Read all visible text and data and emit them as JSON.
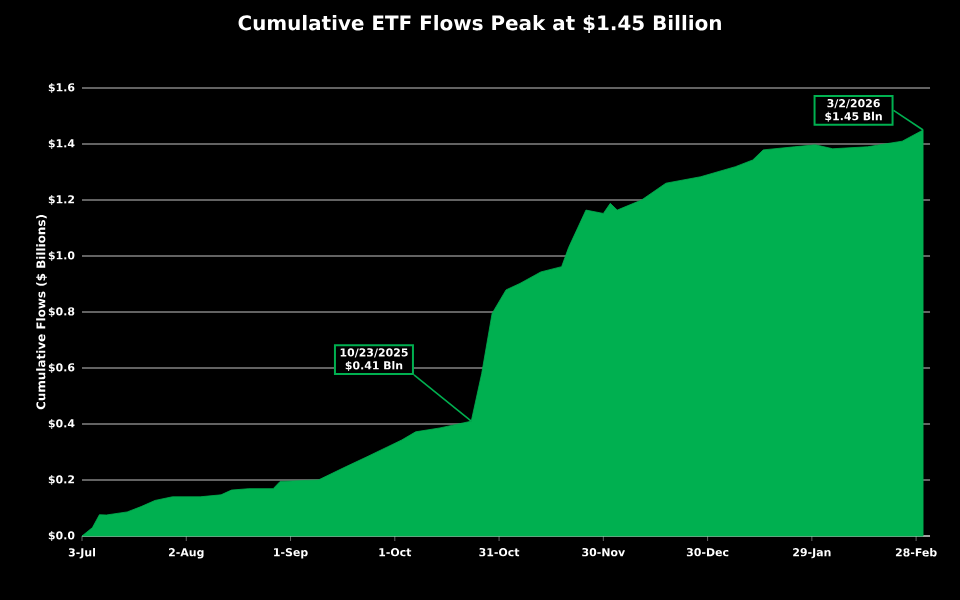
{
  "chart_data": {
    "type": "area",
    "title": "Cumulative ETF Flows Peak at $1.45 Billion",
    "ylabel": "Cumulative Flows ($ Billions)",
    "x": [
      "2025-07-03",
      "2025-07-06",
      "2025-07-08",
      "2025-07-10",
      "2025-07-16",
      "2025-07-20",
      "2025-07-24",
      "2025-07-29",
      "2025-08-06",
      "2025-08-12",
      "2025-08-15",
      "2025-08-20",
      "2025-08-27",
      "2025-08-29",
      "2025-09-09",
      "2025-09-13",
      "2025-09-17",
      "2025-09-23",
      "2025-09-29",
      "2025-10-03",
      "2025-10-07",
      "2025-10-14",
      "2025-10-20",
      "2025-10-23",
      "2025-10-26",
      "2025-10-29",
      "2025-11-02",
      "2025-11-06",
      "2025-11-12",
      "2025-11-18",
      "2025-11-20",
      "2025-11-25",
      "2025-11-30",
      "2025-12-02",
      "2025-12-04",
      "2025-12-11",
      "2025-12-18",
      "2025-12-28",
      "2026-01-07",
      "2026-01-12",
      "2026-01-15",
      "2026-01-24",
      "2026-01-30",
      "2026-02-04",
      "2026-02-14",
      "2026-02-24",
      "2026-03-02"
    ],
    "series": [
      {
        "color": "#00b050",
        "values": [
          0.0,
          0.03,
          0.076,
          0.075,
          0.086,
          0.105,
          0.127,
          0.14,
          0.14,
          0.147,
          0.164,
          0.169,
          0.169,
          0.195,
          0.2,
          0.224,
          0.248,
          0.283,
          0.319,
          0.343,
          0.372,
          0.386,
          0.402,
          0.41,
          0.58,
          0.795,
          0.879,
          0.902,
          0.943,
          0.962,
          1.03,
          1.164,
          1.152,
          1.188,
          1.164,
          1.2,
          1.26,
          1.283,
          1.319,
          1.343,
          1.379,
          1.39,
          1.397,
          1.383,
          1.39,
          1.41,
          1.45
        ]
      }
    ],
    "xlim": [
      "2025-07-03",
      "2026-03-04"
    ],
    "xticks": [
      {
        "value": "2025-07-03",
        "label": "3-Jul"
      },
      {
        "value": "2025-08-02",
        "label": "2-Aug"
      },
      {
        "value": "2025-09-01",
        "label": "1-Sep"
      },
      {
        "value": "2025-10-01",
        "label": "1-Oct"
      },
      {
        "value": "2025-10-31",
        "label": "31-Oct"
      },
      {
        "value": "2025-11-30",
        "label": "30-Nov"
      },
      {
        "value": "2025-12-30",
        "label": "30-Dec"
      },
      {
        "value": "2026-01-29",
        "label": "29-Jan"
      },
      {
        "value": "2026-02-28",
        "label": "28-Feb"
      }
    ],
    "ylim": [
      0,
      1.6
    ],
    "yticks": [
      {
        "value": 0,
        "label": "$0.0"
      },
      {
        "value": 0.2,
        "label": "$0.2"
      },
      {
        "value": 0.4,
        "label": "$0.4"
      },
      {
        "value": 0.6,
        "label": "$0.6"
      },
      {
        "value": 0.8,
        "label": "$0.8"
      },
      {
        "value": 1.0,
        "label": "$1.0"
      },
      {
        "value": 1.2,
        "label": "$1.2"
      },
      {
        "value": 1.4,
        "label": "$1.4"
      },
      {
        "value": 1.6,
        "label": "$1.6"
      }
    ],
    "grid": "y",
    "annotations": [
      {
        "text": "10/23/2025 $0.41 Bln",
        "x": "2025-10-23",
        "y": 0.41
      },
      {
        "text": "3/2/2026 $1.45 Bln",
        "x": "2026-03-02",
        "y": 1.45
      }
    ]
  }
}
